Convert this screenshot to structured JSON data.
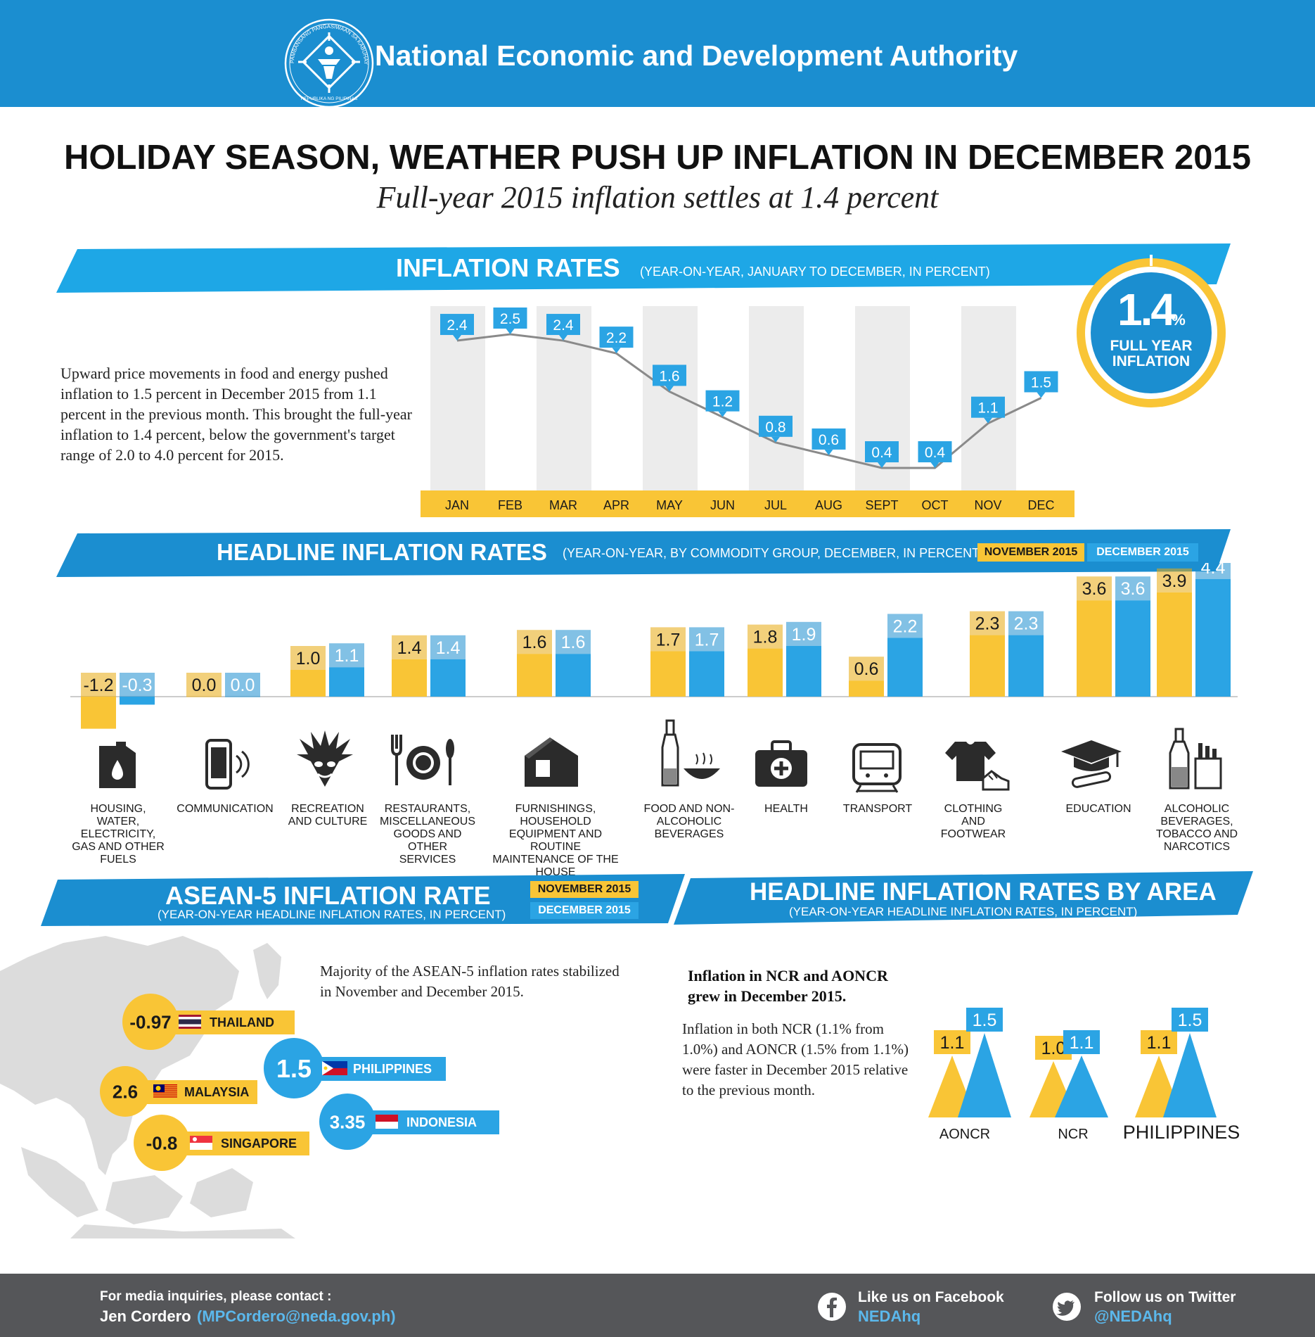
{
  "header": {
    "org_name": "National Economic and Development Authority",
    "logo_ring_text": "PAMBANSANG PANGASIWAAN SA KABUHAYAN AT PAGPAPAUNLAD",
    "logo_bottom_text": "REPUBLIKA NG PILIPINAS"
  },
  "title": "HOLIDAY SEASON, WEATHER PUSH UP INFLATION IN DECEMBER 2015",
  "subtitle": "Full-year 2015 inflation settles at 1.4 percent",
  "section1": {
    "title": "INFLATION RATES",
    "note": "(YEAR-ON-YEAR, JANUARY TO DECEMBER, IN PERCENT)",
    "intro": "Upward price movements in food and energy pushed inflation to 1.5 percent in December 2015 from 1.1 percent in the previous month. This brought the full-year inflation to 1.4 percent, below the government's target range of 2.0 to 4.0 percent for 2015.",
    "full_year_value": "1.4",
    "full_year_unit": "%",
    "full_year_label_1": "FULL YEAR",
    "full_year_label_2": "INFLATION"
  },
  "section2": {
    "title": "HEADLINE INFLATION RATES",
    "note": "(YEAR-ON-YEAR, BY COMMODITY GROUP, DECEMBER, IN PERCENT)",
    "legend_nov": "NOVEMBER 2015",
    "legend_dec": "DECEMBER 2015"
  },
  "section3": {
    "title": "ASEAN-5 INFLATION RATE",
    "note": "(YEAR-ON-YEAR HEADLINE INFLATION RATES, IN PERCENT)",
    "legend_nov": "NOVEMBER 2015",
    "legend_dec": "DECEMBER 2015",
    "text": "Majority of the ASEAN-5 inflation rates stabilized in November and December 2015."
  },
  "section4": {
    "title": "HEADLINE INFLATION RATES BY AREA",
    "note": "(YEAR-ON-YEAR HEADLINE INFLATION RATES, IN PERCENT)",
    "heading": "Inflation in NCR and AONCR grew in December 2015.",
    "body": "Inflation in both NCR (1.1% from 1.0%) and AONCR (1.5% from 1.1%) were faster in December 2015 relative to the previous month."
  },
  "footer": {
    "contact_label": "For media inquiries, please contact :",
    "contact_name": "Jen Cordero",
    "contact_email": "(MPCordero@neda.gov.ph)",
    "facebook_label": "Like us on Facebook",
    "facebook_handle": "NEDAhq",
    "twitter_label": "Follow us on Twitter",
    "twitter_handle": "@NEDAhq"
  },
  "colors": {
    "blue_dark": "#1b8ed0",
    "blue": "#2ba4e4",
    "yellow": "#f9c536",
    "yellow_dark": "#e8a90e",
    "grey_band": "#ececec",
    "footer": "#555659"
  },
  "chart_data": [
    {
      "type": "line",
      "categories": [
        "JAN",
        "FEB",
        "MAR",
        "APR",
        "MAY",
        "JUN",
        "JUL",
        "AUG",
        "SEPT",
        "OCT",
        "NOV",
        "DEC"
      ],
      "values": [
        2.4,
        2.5,
        2.4,
        2.2,
        1.6,
        1.2,
        0.8,
        0.6,
        0.4,
        0.4,
        1.1,
        1.5
      ],
      "labels": [
        "2.4",
        "2.5",
        "2.4",
        "2.2",
        "1.6",
        "1.2",
        "0.8",
        "0.6",
        "0.4",
        "0.4",
        "1.1",
        "1.5"
      ]
    },
    {
      "type": "bar",
      "categories": [
        "HOUSING, WATER, ELECTRICITY, GAS AND OTHER FUELS",
        "COMMUNICATION",
        "RECREATION AND CULTURE",
        "RESTAURANTS, MISCELLANEOUS GOODS AND OTHER SERVICES",
        "FURNISHINGS, HOUSEHOLD EQUIPMENT AND ROUTINE MAINTENANCE OF THE HOUSE",
        "FOOD AND NON-ALCOHOLIC BEVERAGES",
        "HEALTH",
        "TRANSPORT",
        "CLOTHING AND FOOTWEAR",
        "EDUCATION",
        "ALCOHOLIC BEVERAGES, TOBACCO AND NARCOTICS"
      ],
      "icons": [
        "fuel-can-icon",
        "mobile-phone-icon",
        "festival-mask-icon",
        "cutlery-plate-icon",
        "house-icon",
        "bottle-bowl-icon",
        "first-aid-kit-icon",
        "train-icon",
        "shirt-shoe-icon",
        "graduation-cap-icon",
        "bottle-cigarette-icon"
      ],
      "series": [
        {
          "name": "NOVEMBER 2015",
          "values": [
            -1.2,
            0.0,
            1.0,
            1.4,
            1.6,
            1.7,
            1.8,
            0.6,
            2.3,
            3.6,
            3.9
          ],
          "labels": [
            "-1.2",
            "0.0",
            "1.0",
            "1.4",
            "1.6",
            "1.7",
            "1.8",
            "0.6",
            "2.3",
            "3.6",
            "3.9"
          ]
        },
        {
          "name": "DECEMBER 2015",
          "values": [
            -0.3,
            0.0,
            1.1,
            1.4,
            1.6,
            1.7,
            1.9,
            2.2,
            2.3,
            3.6,
            4.4
          ],
          "labels": [
            "-0.3",
            "0.0",
            "1.1",
            "1.4",
            "1.6",
            "1.7",
            "1.9",
            "2.2",
            "2.3",
            "3.6",
            "4.4"
          ]
        }
      ]
    },
    {
      "type": "table",
      "rows": [
        {
          "country": "THAILAND",
          "value": "-0.97",
          "period": "NOVEMBER 2015"
        },
        {
          "country": "PHILIPPINES",
          "value": "1.5",
          "period": "DECEMBER 2015"
        },
        {
          "country": "MALAYSIA",
          "value": "2.6",
          "period": "NOVEMBER 2015"
        },
        {
          "country": "INDONESIA",
          "value": "3.35",
          "period": "DECEMBER 2015"
        },
        {
          "country": "SINGAPORE",
          "value": "-0.8",
          "period": "NOVEMBER 2015"
        }
      ]
    },
    {
      "type": "bar",
      "categories": [
        "AONCR",
        "NCR",
        "PHILIPPINES"
      ],
      "series": [
        {
          "name": "NOVEMBER 2015",
          "values": [
            1.1,
            1.0,
            1.1
          ],
          "labels": [
            "1.1",
            "1.0",
            "1.1"
          ]
        },
        {
          "name": "DECEMBER 2015",
          "values": [
            1.5,
            1.1,
            1.5
          ],
          "labels": [
            "1.5",
            "1.1",
            "1.5"
          ]
        }
      ]
    }
  ]
}
